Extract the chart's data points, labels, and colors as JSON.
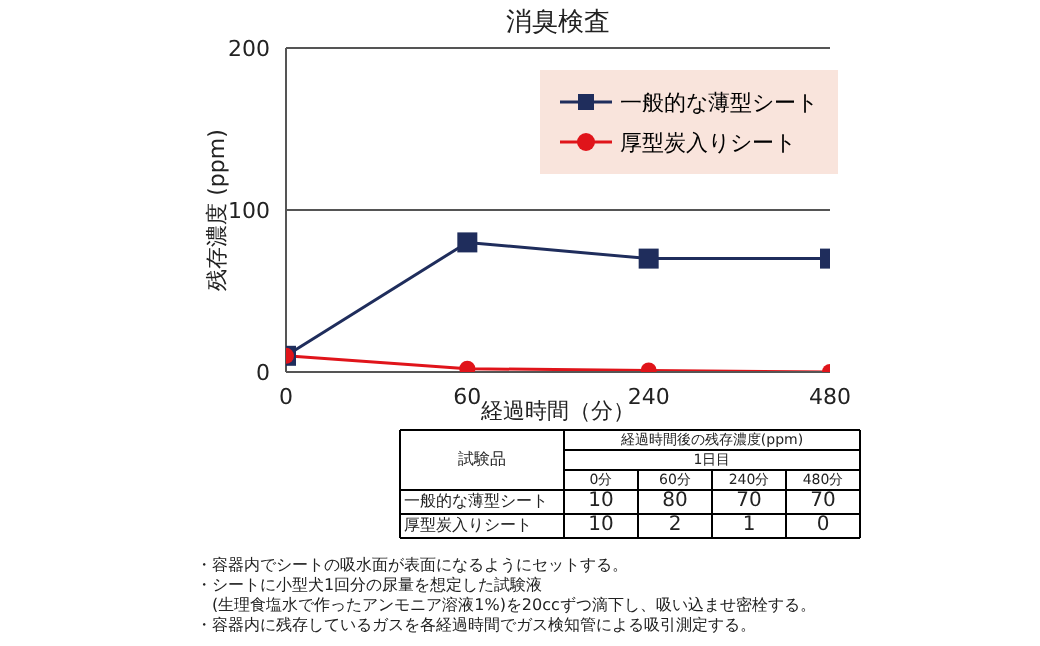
{
  "chart_data": [
    {
      "type": "line",
      "title": "消臭検査",
      "xlabel": "経過時間（分）",
      "ylabel": "残存濃度 (ppm)",
      "categories": [
        "0",
        "60",
        "240",
        "480"
      ],
      "series": [
        {
          "name": "一般的な薄型シート",
          "color": "#1f2d5c",
          "values": [
            10,
            80,
            70,
            70
          ],
          "marker": "square"
        },
        {
          "name": "厚型炭入りシート",
          "color": "#e0141a",
          "values": [
            10,
            2,
            1,
            0
          ],
          "marker": "circle"
        }
      ],
      "ylim": [
        0,
        200
      ],
      "yticks": [
        0,
        100,
        200
      ],
      "grid": "y",
      "legend": "top right",
      "annotations": [
        "・容器内でシートの吸水面が表面になるようにセットする。",
        "・シートに小型犬1回分の尿量を想定した試験液\n　(生理食塩水で作ったアンモニア溶液1%)を20ccずつ滴下し、吸い込ませ密栓する。",
        "・容器内に残存しているガスを各経過時間でガス検知管による吸引測定する。"
      ]
    },
    {
      "type": "heatmap",
      "title": "経過時間後の残存濃度(ppm)",
      "subtitle": "1日目",
      "ylabel": "試験品",
      "categories": [
        "0分",
        "60分",
        "240分",
        "480分"
      ],
      "y_categories": [
        "一般的な薄型シート",
        "厚型炭入りシート"
      ],
      "cells": [
        [
          10,
          80,
          70,
          70
        ],
        [
          10,
          2,
          1,
          0
        ]
      ],
      "data_labels": true
    }
  ]
}
